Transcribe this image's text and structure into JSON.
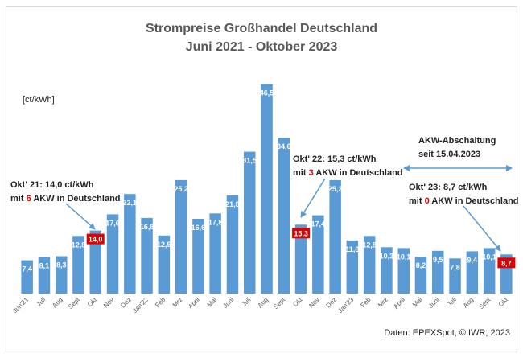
{
  "header": {
    "title_line1": "Strompreise Großhandel Deutschland",
    "title_line2": "Juni 2021 - Oktober 2023",
    "unit": "[ct/kWh]",
    "source": "Daten: EPEXSpot, © IWR, 2023"
  },
  "annotations": {
    "okt21_line1": "Okt' 21: 14,0 ct/kWh",
    "okt21_pre": "mit ",
    "okt21_num": "6",
    "okt21_post": " AKW in Deutschland",
    "okt22_line1": "Okt' 22: 15,3 ct/kWh",
    "okt22_pre": "mit ",
    "okt22_num": "3",
    "okt22_post": " AKW in Deutschland",
    "okt23_line1": "Okt' 23: 8,7 ct/kWh",
    "okt23_pre": "mit ",
    "okt23_num": "0",
    "okt23_post": " AKW in Deutschland",
    "akw_line1": "AKW-Abschaltung",
    "akw_line2": "seit 15.04.2023"
  },
  "colors": {
    "bar": "#5b9bd5",
    "highlight": "#e00000",
    "label": "#ffffff",
    "arrow": "#5b9bd5",
    "axis_text": "#595959"
  },
  "chart_data": {
    "type": "bar",
    "categories": [
      "Jun'21",
      "Juli",
      "Aug",
      "Sept",
      "Okt",
      "Nov",
      "Dez",
      "Jan'22",
      "Feb",
      "Mrz",
      "April",
      "Mai",
      "Juni",
      "Juli",
      "Aug",
      "Sept",
      "Okt",
      "Nov",
      "Dez",
      "Jan'23",
      "Feb",
      "Mrz",
      "April",
      "Mai",
      "Juni",
      "Juli",
      "Aug",
      "Sept",
      "Okt"
    ],
    "values": [
      7.4,
      8.1,
      8.3,
      12.8,
      14.0,
      17.6,
      22.1,
      16.8,
      12.9,
      25.2,
      16.6,
      17.8,
      21.8,
      31.5,
      46.5,
      34.6,
      15.3,
      17.4,
      25.2,
      11.8,
      12.8,
      10.3,
      10.1,
      8.2,
      9.5,
      7.8,
      9.4,
      10.1,
      8.7
    ],
    "value_labels": [
      "7,4",
      "8,1",
      "8,3",
      "12,8",
      "14,0",
      "17,6",
      "22,1",
      "16,8",
      "12,9",
      "25,2",
      "16,6",
      "17,8",
      "21,8",
      "31,5",
      "46,5",
      "34,6",
      "15,3",
      "17,4",
      "25,2",
      "11,8",
      "12,8",
      "10,3",
      "10,1",
      "8,2",
      "9,5",
      "7,8",
      "9,4",
      "10,1",
      "8,7"
    ],
    "highlighted": [
      4,
      16,
      28
    ],
    "title": "Strompreise Großhandel Deutschland",
    "subtitle": "Juni 2021 - Oktober 2023",
    "ylabel": "[ct/kWh]",
    "ylim": [
      0,
      50
    ],
    "grid": false,
    "legend": "none"
  }
}
